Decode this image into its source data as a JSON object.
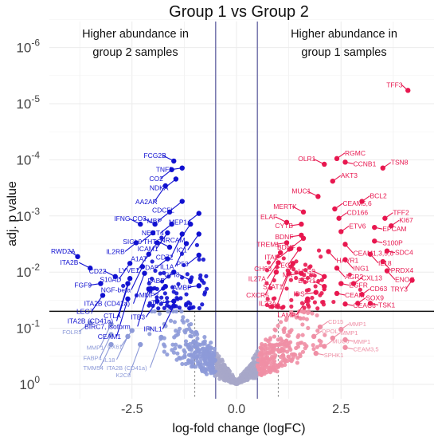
{
  "chart_data": {
    "type": "scatter",
    "title": "Group 1 vs Group 2",
    "xlabel": "log-fold change (logFC)",
    "ylabel": "adj. p value",
    "x_ticks": [
      {
        "value": -2.5,
        "label": "-2.5"
      },
      {
        "value": 0,
        "label": "0.0"
      },
      {
        "value": 2.5,
        "label": "2.5"
      }
    ],
    "y_scale": "log (reversed, small p at top)",
    "y_ticks": [
      {
        "value": 1e-06,
        "base": "10",
        "exp": "-6"
      },
      {
        "value": 1e-05,
        "base": "10",
        "exp": "-5"
      },
      {
        "value": 0.0001,
        "base": "10",
        "exp": "-4"
      },
      {
        "value": 0.001,
        "base": "10",
        "exp": "-3"
      },
      {
        "value": 0.01,
        "base": "10",
        "exp": "-2"
      },
      {
        "value": 0.1,
        "base": "10",
        "exp": "-1"
      },
      {
        "value": 1,
        "base": "10",
        "exp": "0"
      }
    ],
    "xlim": [
      -4.2,
      4.4
    ],
    "ylim_p": [
      1,
      2.5e-07
    ],
    "grid": true,
    "thresholds": {
      "logfc_lines": [
        -0.5,
        0.5
      ],
      "p_line": 0.05,
      "logfc_dotted": [
        -1,
        1
      ]
    },
    "annotations": {
      "left_line1": "Higher abundance in",
      "left_line2": "group 2 samples",
      "right_line1": "Higher abundance in",
      "right_line2": "group 1 samples"
    },
    "colors": {
      "down_sig": "#1010d0",
      "down_nonsig": "#8d9ad8",
      "up_sig": "#e8174f",
      "up_nonsig": "#ef8fa5",
      "neutral": "#a7a7c9",
      "vline": "#7b7bb0"
    },
    "labeled_points": [
      {
        "label": "TFF3",
        "x": 4.1,
        "p": 5.8e-06,
        "g": "up"
      },
      {
        "label": "RGMC",
        "x": 2.4,
        "p": 9.5e-05,
        "g": "up"
      },
      {
        "label": "OLR1",
        "x": 2.1,
        "p": 0.00012,
        "g": "up"
      },
      {
        "label": "CCNB1",
        "x": 2.6,
        "p": 0.00011,
        "g": "up"
      },
      {
        "label": "TSN8",
        "x": 3.5,
        "p": 0.00014,
        "g": "up"
      },
      {
        "label": "AKT3",
        "x": 2.3,
        "p": 0.00024,
        "g": "up"
      },
      {
        "label": "MUC1",
        "x": 1.95,
        "p": 0.00045,
        "g": "up"
      },
      {
        "label": "BCL2",
        "x": 3.0,
        "p": 0.00055,
        "g": "up"
      },
      {
        "label": "CEAM5,6",
        "x": 2.35,
        "p": 0.00075,
        "g": "up"
      },
      {
        "label": "MERTK",
        "x": 1.6,
        "p": 0.00085,
        "g": "up"
      },
      {
        "label": "TFF2",
        "x": 3.55,
        "p": 0.0011,
        "g": "up"
      },
      {
        "label": "CD166",
        "x": 2.45,
        "p": 0.0011,
        "g": "up"
      },
      {
        "label": "ELAF",
        "x": 1.2,
        "p": 0.0013,
        "g": "up"
      },
      {
        "label": "CYTB",
        "x": 1.55,
        "p": 0.0014,
        "g": "up"
      },
      {
        "label": "KI67",
        "x": 3.7,
        "p": 0.0015,
        "g": "up"
      },
      {
        "label": "EPCAM",
        "x": 3.3,
        "p": 0.0016,
        "g": "up"
      },
      {
        "label": "ETV6",
        "x": 2.5,
        "p": 0.0019,
        "g": "up"
      },
      {
        "label": "BDNF",
        "x": 1.55,
        "p": 0.0022,
        "g": "up"
      },
      {
        "label": "BDNF",
        "x": 1.6,
        "p": 0.0025,
        "g": "up"
      },
      {
        "label": "S100P",
        "x": 3.3,
        "p": 0.0028,
        "g": "up"
      },
      {
        "label": "TREM1",
        "x": 1.2,
        "p": 0.003,
        "g": "up"
      },
      {
        "label": "CEAM1,3,5,6",
        "x": 2.6,
        "p": 0.0032,
        "g": "up"
      },
      {
        "label": "HAVR1",
        "x": 2.2,
        "p": 0.0043,
        "g": "up"
      },
      {
        "label": "ITAL",
        "x": 1.3,
        "p": 0.0038,
        "g": "up"
      },
      {
        "label": "LEG",
        "x": 1.5,
        "p": 0.0039,
        "g": "up"
      },
      {
        "label": "SDC4",
        "x": 3.6,
        "p": 0.0042,
        "g": "up"
      },
      {
        "label": "CH60",
        "x": 1.05,
        "p": 0.0045,
        "g": "up"
      },
      {
        "label": "IL18",
        "x": 3.2,
        "p": 0.0048,
        "g": "up"
      },
      {
        "label": "ING1",
        "x": 2.6,
        "p": 0.006,
        "g": "up"
      },
      {
        "label": "IL27A",
        "x": 1.0,
        "p": 0.0068,
        "g": "up"
      },
      {
        "label": "STAT1",
        "x": 1.35,
        "p": 0.007,
        "g": "up"
      },
      {
        "label": "PRDX4",
        "x": 3.5,
        "p": 0.0065,
        "g": "up"
      },
      {
        "label": "AGR2",
        "x": 2.4,
        "p": 0.0085,
        "g": "up"
      },
      {
        "label": "ENOG",
        "x": 3.6,
        "p": 0.0095,
        "g": "up"
      },
      {
        "label": "CXCR5",
        "x": 0.95,
        "p": 0.01,
        "g": "up"
      },
      {
        "label": "IL23A",
        "x": 1.25,
        "p": 0.0105,
        "g": "up"
      },
      {
        "label": "MK",
        "x": 1.55,
        "p": 0.0105,
        "g": "up"
      },
      {
        "label": "LEG9",
        "x": 2.1,
        "p": 0.012,
        "g": "up"
      },
      {
        "label": "TRY3",
        "x": 4.2,
        "p": 0.014,
        "g": "up"
      },
      {
        "label": "EGFR",
        "x": 2.5,
        "p": 0.016,
        "g": "up"
      },
      {
        "label": "CXL13",
        "x": 2.8,
        "p": 0.016,
        "g": "up"
      },
      {
        "label": "ESR1",
        "x": 2.1,
        "p": 0.018,
        "g": "up"
      },
      {
        "label": "IDS",
        "x": 1.9,
        "p": 0.023,
        "g": "up"
      },
      {
        "label": "CEAM",
        "x": 2.4,
        "p": 0.024,
        "g": "up"
      },
      {
        "label": "CD63",
        "x": 3.0,
        "p": 0.025,
        "g": "up"
      },
      {
        "label": "LAMP1",
        "x": 1.7,
        "p": 0.03,
        "g": "up"
      },
      {
        "label": "SOX9",
        "x": 2.9,
        "p": 0.036,
        "g": "up"
      },
      {
        "label": "TSK1",
        "x": 3.2,
        "p": 0.036,
        "g": "up"
      },
      {
        "label": "CEAC6",
        "x": 2.6,
        "p": 0.037,
        "g": "up"
      },
      {
        "label": "CD15",
        "x": 2.0,
        "p": 0.095,
        "g": "up_ns"
      },
      {
        "label": "MMP1",
        "x": 2.5,
        "p": 0.105,
        "g": "up_ns"
      },
      {
        "label": "DPOL",
        "x": 1.85,
        "p": 0.14,
        "g": "up_ns"
      },
      {
        "label": "MMP1",
        "x": 2.3,
        "p": 0.15,
        "g": "up_ns"
      },
      {
        "label": "MMP1",
        "x": 2.6,
        "p": 0.16,
        "g": "up_ns"
      },
      {
        "label": "MUC6",
        "x": 2.1,
        "p": 0.21,
        "g": "up_ns"
      },
      {
        "label": "CEAM3,5",
        "x": 2.6,
        "p": 0.22,
        "g": "up_ns"
      },
      {
        "label": "SPHK1",
        "x": 1.9,
        "p": 0.28,
        "g": "up_ns"
      },
      {
        "label": "FCG2B",
        "x": -1.5,
        "p": 0.000105,
        "g": "down"
      },
      {
        "label": "TNFB",
        "x": -1.3,
        "p": 0.00014,
        "g": "down"
      },
      {
        "label": "CO2",
        "x": -1.55,
        "p": 0.00015,
        "g": "down"
      },
      {
        "label": "NDKA",
        "x": -1.45,
        "p": 0.00022,
        "g": "down"
      },
      {
        "label": "AA2AR",
        "x": -1.7,
        "p": 0.00029,
        "g": "down"
      },
      {
        "label": "CDC5L",
        "x": -1.3,
        "p": 0.00055,
        "g": "down"
      },
      {
        "label": "MBP",
        "x": -1.6,
        "p": 0.00085,
        "g": "down"
      },
      {
        "label": "MEP1A",
        "x": -0.9,
        "p": 0.0009,
        "g": "down"
      },
      {
        "label": "IFNG",
        "x": -2.3,
        "p": 0.0014,
        "g": "down"
      },
      {
        "label": "CO3",
        "x": -1.95,
        "p": 0.0014,
        "g": "down"
      },
      {
        "label": "NECT4",
        "x": -1.55,
        "p": 0.0014,
        "g": "down"
      },
      {
        "label": "NRCAM",
        "x": -1.1,
        "p": 0.0014,
        "g": "down"
      },
      {
        "label": "SIGL9",
        "x": -2.0,
        "p": 0.002,
        "g": "down"
      },
      {
        "label": "ICAM1",
        "x": -1.65,
        "p": 0.002,
        "g": "down"
      },
      {
        "label": "CD72",
        "x": -1.3,
        "p": 0.0021,
        "g": "down"
      },
      {
        "label": "IC1",
        "x": -0.9,
        "p": 0.0021,
        "g": "down"
      },
      {
        "label": "IL2RB",
        "x": -2.4,
        "p": 0.003,
        "g": "down"
      },
      {
        "label": "A1AT",
        "x": -1.9,
        "p": 0.003,
        "g": "down"
      },
      {
        "label": "IL1A",
        "x": -1.2,
        "p": 0.0031,
        "g": "down"
      },
      {
        "label": "THTG",
        "x": -1.6,
        "p": 0.0036,
        "g": "down"
      },
      {
        "label": "LYVE1",
        "x": -2.1,
        "p": 0.0048,
        "g": "down"
      },
      {
        "label": "RWD2A",
        "x": -3.8,
        "p": 0.0053,
        "g": "down"
      },
      {
        "label": "P53",
        "x": -0.9,
        "p": 0.005,
        "g": "down"
      },
      {
        "label": "DAF",
        "x": -1.65,
        "p": 0.0058,
        "g": "down"
      },
      {
        "label": "S10AD",
        "x": -2.55,
        "p": 0.007,
        "g": "down"
      },
      {
        "label": "NGF-beta",
        "x": -2.25,
        "p": 0.008,
        "g": "down"
      },
      {
        "label": "ITA2B",
        "x": -3.5,
        "p": 0.0085,
        "g": "down"
      },
      {
        "label": "FABP",
        "x": -1.5,
        "p": 0.01,
        "g": "down"
      },
      {
        "label": "ITA2B (CD41a)",
        "x": -2.2,
        "p": 0.0105,
        "g": "down"
      },
      {
        "label": "CD22",
        "x": -2.9,
        "p": 0.012,
        "g": "down"
      },
      {
        "label": "CTLA",
        "x": -2.55,
        "p": 0.013,
        "g": "down"
      },
      {
        "label": "GPI8",
        "x": -1.1,
        "p": 0.014,
        "g": "down"
      },
      {
        "label": "ITA2B (CD41a)",
        "x": -2.6,
        "p": 0.016,
        "g": "down"
      },
      {
        "label": "FGF9",
        "x": -3.25,
        "p": 0.016,
        "g": "down"
      },
      {
        "label": "AMBP",
        "x": -0.9,
        "p": 0.0175,
        "g": "down"
      },
      {
        "label": "MMP2",
        "x": -1.7,
        "p": 0.018,
        "g": "down"
      },
      {
        "label": "BIRC7, isoform",
        "x": -2.1,
        "p": 0.02,
        "g": "down"
      },
      {
        "label": "LEG7",
        "x": -3.2,
        "p": 0.026,
        "g": "down"
      },
      {
        "label": "CEAM1",
        "x": -2.6,
        "p": 0.03,
        "g": "down"
      },
      {
        "label": "ITB3",
        "x": -1.9,
        "p": 0.033,
        "g": "down"
      },
      {
        "label": "TYY",
        "x": -1.5,
        "p": 0.033,
        "g": "down"
      },
      {
        "label": "IFNL1",
        "x": -1.5,
        "p": 0.04,
        "g": "down"
      },
      {
        "label": "FOLR3",
        "x": -3.5,
        "p": 0.08,
        "g": "down_ns"
      },
      {
        "label": "MMP1",
        "x": -3.0,
        "p": 0.085,
        "g": "down_ns"
      },
      {
        "label": "UX61",
        "x": -2.5,
        "p": 0.11,
        "g": "down_ns"
      },
      {
        "label": "FABP4",
        "x": -3.0,
        "p": 0.13,
        "g": "down_ns"
      },
      {
        "label": "IL18",
        "x": -2.6,
        "p": 0.14,
        "g": "down_ns"
      },
      {
        "label": "ITA2B (CD41a)",
        "x": -1.8,
        "p": 0.145,
        "g": "down_ns"
      },
      {
        "label": "TMM54",
        "x": -3.0,
        "p": 0.195,
        "g": "down_ns"
      },
      {
        "label": "K2C8",
        "x": -2.3,
        "p": 0.195,
        "g": "down_ns"
      }
    ]
  }
}
